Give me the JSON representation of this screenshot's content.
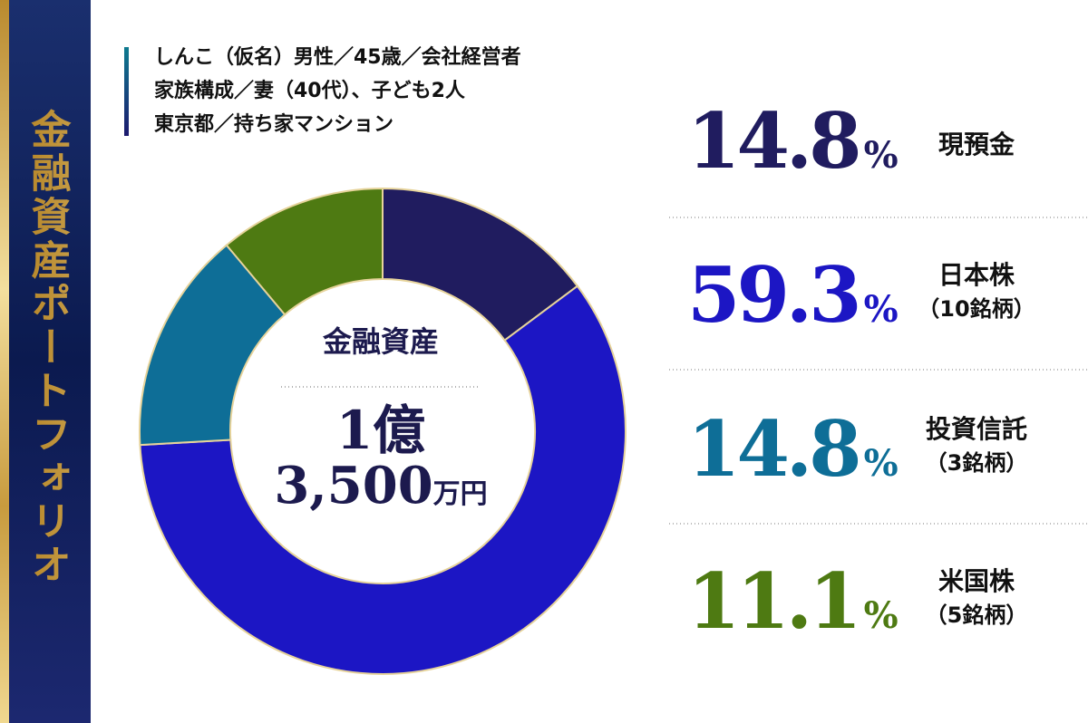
{
  "chart_data": {
    "type": "donut",
    "title": "金融資産ポートフォリオ",
    "profile": [
      "しんこ（仮名）男性／45歳／会社経営者",
      "家族構成／妻（40代）、子ども2人",
      "東京都／持ち家マンション"
    ],
    "center_label": "金融資産",
    "total_line1": "1億",
    "total_line2": "3,500",
    "total_unit": "万円",
    "categories": [
      "現預金",
      "日本株",
      "投資信託",
      "米国株"
    ],
    "sublabels": [
      null,
      "（10銘柄）",
      "（3銘柄）",
      "（5銘柄）"
    ],
    "values": [
      14.8,
      59.3,
      14.8,
      11.1
    ],
    "unit": "%",
    "colors": [
      "#201c5f",
      "#1c16c4",
      "#0e6e97",
      "#4e7a12"
    ]
  }
}
